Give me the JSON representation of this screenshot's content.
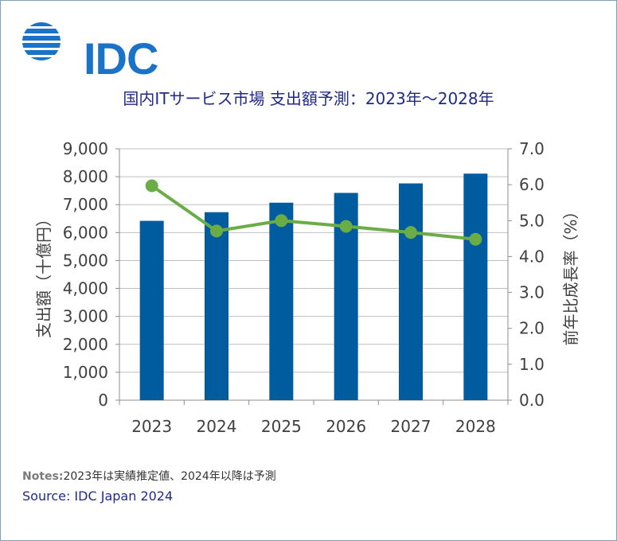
{
  "logo": {
    "text": "IDC"
  },
  "chart_data": {
    "type": "bar",
    "title": "国内ITサービス市場 支出額予測：2023年～2028年",
    "categories": [
      "2023",
      "2024",
      "2025",
      "2026",
      "2027",
      "2028"
    ],
    "series": [
      {
        "type": "bar",
        "axis": "left",
        "values": [
          6420,
          6730,
          7070,
          7420,
          7760,
          8110
        ]
      },
      {
        "type": "line",
        "axis": "right",
        "values": [
          5.97,
          4.71,
          5.0,
          4.84,
          4.67,
          4.48
        ]
      }
    ],
    "ylabel": "支出額（十億円）",
    "ylim": [
      0,
      9000
    ],
    "yticks": [
      "0",
      "1,000",
      "2,000",
      "3,000",
      "4,000",
      "5,000",
      "6,000",
      "7,000",
      "8,000",
      "9,000"
    ],
    "y2label": "前年比成長率（%）",
    "y2lim": [
      0,
      7
    ],
    "y2ticks": [
      "0.0",
      "1.0",
      "2.0",
      "3.0",
      "4.0",
      "5.0",
      "6.0",
      "7.0"
    ],
    "grid": true,
    "colors": {
      "bar": "#005b9f",
      "line": "#6aac46",
      "grid": "#bfbfbf",
      "axis": "#8c8c8c"
    }
  },
  "notes": {
    "label": "Notes:",
    "text": "2023年は実績推定値、2024年以降は予測"
  },
  "source": "Source: IDC Japan 2024"
}
